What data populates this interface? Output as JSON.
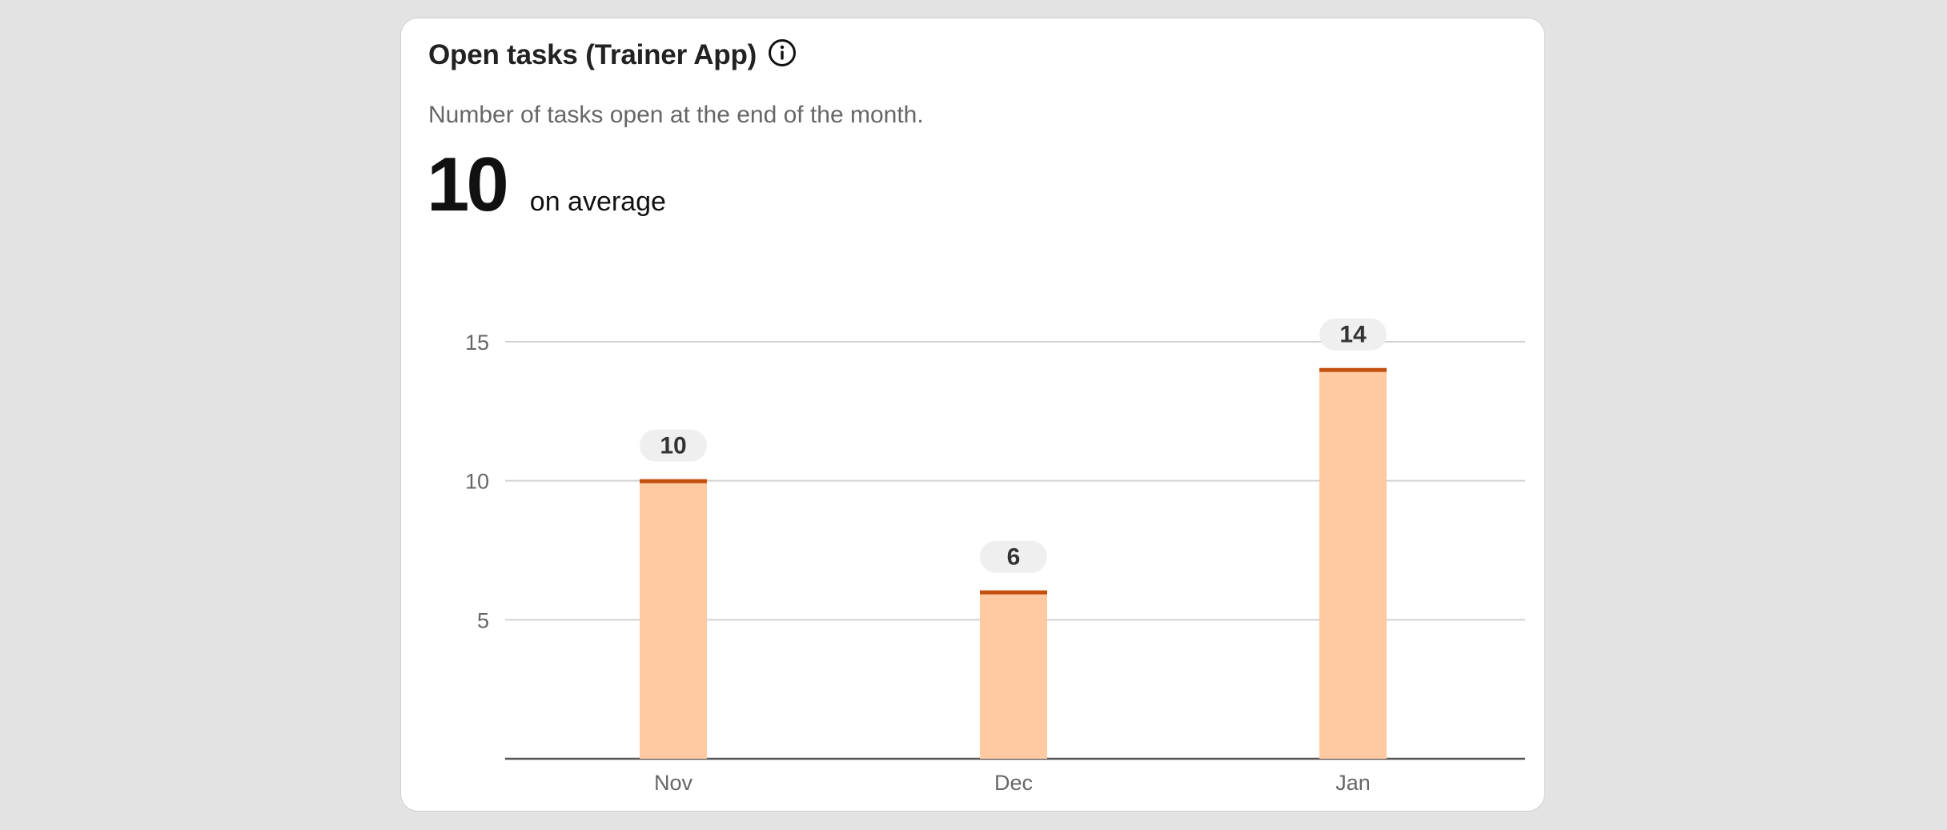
{
  "card": {
    "title": "Open tasks (Trainer App)",
    "subtitle": "Number of tasks open at the end of the month.",
    "metric_value": "10",
    "metric_label": "on average",
    "info_icon": "info-circle-icon"
  },
  "colors": {
    "bar_fill": "#ffc9a1",
    "bar_top": "#c4500e",
    "gridline": "#d2d2d2",
    "axis": "#555555",
    "tick_label": "#666666",
    "data_label_bg": "#efefef",
    "data_label_text": "#333333"
  },
  "chart_data": {
    "type": "bar",
    "categories": [
      "Nov",
      "Dec",
      "Jan"
    ],
    "values": [
      10,
      6,
      14
    ],
    "data_labels": [
      "10",
      "6",
      "14"
    ],
    "yticks": [
      5,
      10,
      15
    ],
    "ytick_labels": [
      "5",
      "10",
      "15"
    ],
    "ylim": [
      0,
      15
    ],
    "grid": true,
    "title": "",
    "xlabel": "",
    "ylabel": ""
  }
}
